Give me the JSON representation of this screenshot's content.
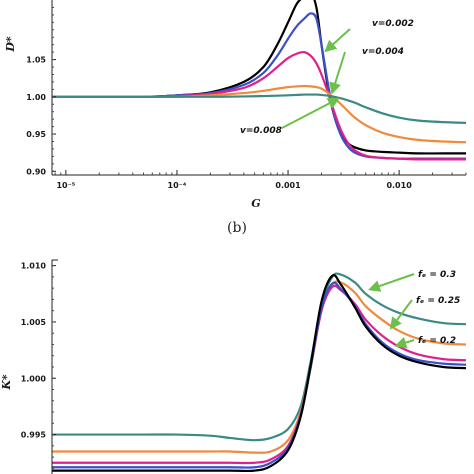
{
  "caption": "(b)",
  "colors": {
    "black": "#000000",
    "blue": "#3a50c8",
    "magenta": "#e0208c",
    "orange": "#f08a3c",
    "teal": "#3b8a84",
    "arrow": "#6cc04a"
  },
  "chart_data": [
    {
      "type": "line",
      "panel": "top",
      "xlabel": "G",
      "ylabel": "D*",
      "xscale": "log",
      "xlim": [
        7.5e-06,
        0.04
      ],
      "ylim": [
        0.895,
        1.13
      ],
      "x_ticks": [
        {
          "value": 1e-05,
          "label": "10⁻⁵"
        },
        {
          "value": 0.0001,
          "label": "10⁻⁴"
        },
        {
          "value": 0.001,
          "label": "0.001"
        },
        {
          "value": 0.01,
          "label": "0.010"
        }
      ],
      "y_ticks": [
        {
          "value": 0.9,
          "label": "0.90"
        },
        {
          "value": 0.95,
          "label": "0.95"
        },
        {
          "value": 1.0,
          "label": "1.00"
        },
        {
          "value": 1.05,
          "label": "1.05"
        }
      ],
      "annotations": [
        {
          "text": "v=0.002",
          "series": 2
        },
        {
          "text": "v=0.004",
          "series": 3
        },
        {
          "text": "v=0.008",
          "series": 4
        }
      ],
      "series": [
        {
          "color": "#000000",
          "x": [
            7.5e-06,
            5e-05,
            0.0001,
            0.0002,
            0.0004,
            0.0006,
            0.0008,
            0.001,
            0.0012,
            0.0014,
            0.0016,
            0.0018,
            0.002,
            0.0023,
            0.0026,
            0.003,
            0.0035,
            0.004,
            0.005,
            0.007,
            0.01,
            0.015,
            0.025,
            0.04
          ],
          "y": [
            1.0,
            1.0,
            1.002,
            1.006,
            1.02,
            1.04,
            1.07,
            1.1,
            1.125,
            1.135,
            1.14,
            1.12,
            1.07,
            1.01,
            0.975,
            0.95,
            0.937,
            0.932,
            0.928,
            0.926,
            0.925,
            0.924,
            0.924,
            0.924
          ]
        },
        {
          "color": "#3a50c8",
          "x": [
            7.5e-06,
            5e-05,
            0.0001,
            0.0002,
            0.0004,
            0.0006,
            0.0008,
            0.001,
            0.0012,
            0.0014,
            0.0016,
            0.0018,
            0.002,
            0.0023,
            0.0026,
            0.003,
            0.0035,
            0.004,
            0.005,
            0.007,
            0.01,
            0.015,
            0.025,
            0.04
          ],
          "y": [
            1.0,
            1.0,
            1.002,
            1.005,
            1.016,
            1.032,
            1.055,
            1.078,
            1.095,
            1.105,
            1.112,
            1.105,
            1.07,
            1.015,
            0.975,
            0.948,
            0.932,
            0.925,
            0.92,
            0.918,
            0.917,
            0.917,
            0.917,
            0.917
          ]
        },
        {
          "color": "#e0208c",
          "x": [
            7.5e-06,
            5e-05,
            0.0001,
            0.0002,
            0.0004,
            0.0006,
            0.0008,
            0.001,
            0.0012,
            0.0014,
            0.0016,
            0.0018,
            0.002,
            0.0023,
            0.0026,
            0.003,
            0.0035,
            0.004,
            0.005,
            0.007,
            0.01,
            0.015,
            0.025,
            0.04
          ],
          "y": [
            1.0,
            1.0,
            1.001,
            1.004,
            1.012,
            1.025,
            1.04,
            1.052,
            1.058,
            1.06,
            1.055,
            1.045,
            1.03,
            1.005,
            0.98,
            0.955,
            0.937,
            0.928,
            0.921,
            0.918,
            0.917,
            0.916,
            0.916,
            0.916
          ]
        },
        {
          "color": "#f08a3c",
          "x": [
            7.5e-06,
            5e-05,
            0.0001,
            0.0002,
            0.0004,
            0.0006,
            0.0008,
            0.001,
            0.0012,
            0.0014,
            0.0016,
            0.0018,
            0.002,
            0.0023,
            0.0026,
            0.003,
            0.0035,
            0.004,
            0.005,
            0.007,
            0.01,
            0.015,
            0.025,
            0.04
          ],
          "y": [
            1.0,
            1.0,
            1.0,
            1.002,
            1.005,
            1.008,
            1.011,
            1.013,
            1.014,
            1.0145,
            1.014,
            1.013,
            1.011,
            1.005,
            0.998,
            0.99,
            0.98,
            0.972,
            0.962,
            0.952,
            0.946,
            0.942,
            0.94,
            0.939
          ]
        },
        {
          "color": "#3b8a84",
          "x": [
            7.5e-06,
            5e-05,
            0.0001,
            0.0002,
            0.0004,
            0.0006,
            0.0008,
            0.001,
            0.0012,
            0.0014,
            0.0016,
            0.0018,
            0.002,
            0.0023,
            0.0026,
            0.003,
            0.0035,
            0.004,
            0.005,
            0.007,
            0.01,
            0.015,
            0.025,
            0.04
          ],
          "y": [
            1.0,
            1.0,
            1.0,
            1.0,
            1.0005,
            1.001,
            1.0015,
            1.002,
            1.0025,
            1.003,
            1.003,
            1.003,
            1.0025,
            1.0015,
            1.0,
            0.998,
            0.995,
            0.992,
            0.986,
            0.978,
            0.972,
            0.968,
            0.966,
            0.965
          ]
        }
      ]
    },
    {
      "type": "line",
      "panel": "bottom",
      "ylabel": "K*",
      "xscale": "log",
      "xlim": [
        7.5e-06,
        0.04
      ],
      "ylim": [
        0.9915,
        1.0105
      ],
      "y_ticks": [
        {
          "value": 0.995,
          "label": "0.995"
        },
        {
          "value": 1.0,
          "label": "1.000"
        },
        {
          "value": 1.005,
          "label": "1.005"
        },
        {
          "value": 1.01,
          "label": "1.010"
        }
      ],
      "annotations": [
        {
          "text": "fₑ = 0.3",
          "series": 0
        },
        {
          "text": "fₑ = 0.25",
          "series": 1
        },
        {
          "text": "fₑ = 0.2",
          "series": 2
        }
      ],
      "series": [
        {
          "color": "#3b8a84",
          "x": [
            7.5e-06,
            5e-05,
            0.0001,
            0.0002,
            0.0003,
            0.0005,
            0.0007,
            0.001,
            0.0013,
            0.0016,
            0.002,
            0.0025,
            0.003,
            0.004,
            0.005,
            0.007,
            0.01,
            0.015,
            0.025,
            0.04
          ],
          "y": [
            0.995,
            0.995,
            0.995,
            0.9949,
            0.9947,
            0.9945,
            0.9947,
            0.9955,
            0.9975,
            1.0015,
            1.0065,
            1.009,
            1.0092,
            1.0085,
            1.0075,
            1.0065,
            1.0058,
            1.0053,
            1.0049,
            1.0048
          ]
        },
        {
          "color": "#f08a3c",
          "x": [
            7.5e-06,
            5e-05,
            0.0001,
            0.0002,
            0.0003,
            0.0005,
            0.0007,
            0.001,
            0.0013,
            0.0016,
            0.002,
            0.0025,
            0.003,
            0.004,
            0.005,
            0.007,
            0.01,
            0.015,
            0.025,
            0.04
          ],
          "y": [
            0.9935,
            0.9935,
            0.9935,
            0.9935,
            0.9935,
            0.9934,
            0.9935,
            0.9945,
            0.997,
            1.001,
            1.006,
            1.0083,
            1.0085,
            1.0076,
            1.0064,
            1.0052,
            1.0042,
            1.0035,
            1.0031,
            1.003
          ]
        },
        {
          "color": "#e0208c",
          "x": [
            7.5e-06,
            5e-05,
            0.0001,
            0.0002,
            0.0003,
            0.0005,
            0.0007,
            0.001,
            0.0013,
            0.0016,
            0.002,
            0.0025,
            0.003,
            0.004,
            0.005,
            0.007,
            0.01,
            0.015,
            0.025,
            0.04
          ],
          "y": [
            0.9925,
            0.9925,
            0.9925,
            0.9925,
            0.9925,
            0.9925,
            0.9928,
            0.994,
            0.9968,
            1.001,
            1.006,
            1.0081,
            1.0078,
            1.0066,
            1.0052,
            1.0038,
            1.0028,
            1.0021,
            1.0017,
            1.0016
          ]
        },
        {
          "color": "#3a50c8",
          "x": [
            7.5e-06,
            5e-05,
            0.0001,
            0.0002,
            0.0003,
            0.0005,
            0.0007,
            0.001,
            0.0013,
            0.0016,
            0.002,
            0.0025,
            0.003,
            0.004,
            0.005,
            0.007,
            0.01,
            0.015,
            0.025,
            0.04
          ],
          "y": [
            0.9921,
            0.9921,
            0.9921,
            0.9921,
            0.9921,
            0.9921,
            0.9925,
            0.9938,
            0.9967,
            1.001,
            1.0062,
            1.0084,
            1.0079,
            1.0064,
            1.0048,
            1.0032,
            1.0022,
            1.0016,
            1.0013,
            1.0012
          ]
        },
        {
          "color": "#000000",
          "x": [
            7.5e-06,
            5e-05,
            0.0001,
            0.0002,
            0.0003,
            0.0005,
            0.0007,
            0.001,
            0.0013,
            0.0016,
            0.002,
            0.0025,
            0.003,
            0.004,
            0.005,
            0.007,
            0.01,
            0.015,
            0.025,
            0.04
          ],
          "y": [
            0.9918,
            0.9918,
            0.9918,
            0.9918,
            0.9918,
            0.9918,
            0.9922,
            0.9936,
            0.9966,
            1.0012,
            1.0068,
            1.0091,
            1.0083,
            1.0063,
            1.0046,
            1.003,
            1.002,
            1.0014,
            1.001,
            1.0009
          ]
        }
      ]
    }
  ]
}
